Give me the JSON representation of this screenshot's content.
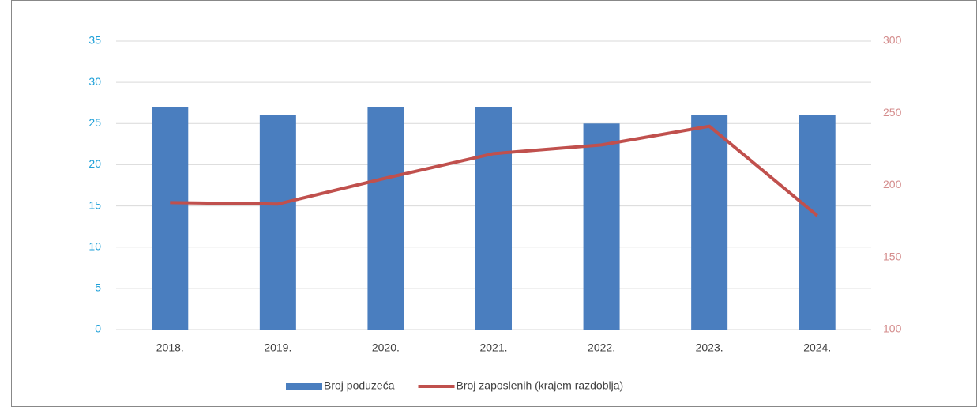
{
  "chart_data": {
    "type": "bar-line",
    "categories": [
      "2018.",
      "2019.",
      "2020.",
      "2021.",
      "2022.",
      "2023.",
      "2024."
    ],
    "series": [
      {
        "name": "Broj poduzeća",
        "color": "#4a7ebf",
        "type": "bar",
        "values": [
          27,
          26,
          27,
          27,
          25,
          26,
          26
        ]
      },
      {
        "name": "Broj zaposlenih (krajem razdoblja)",
        "color": "#c0504d",
        "type": "line",
        "axis": "y2",
        "values": [
          188,
          187,
          205,
          222,
          228,
          241,
          179
        ]
      }
    ],
    "ylim": [
      0,
      35
    ],
    "yticks": [
      0,
      5,
      10,
      15,
      20,
      25,
      30,
      35
    ],
    "y2lim": [
      100,
      300
    ],
    "y2ticks": [
      100,
      150,
      200,
      250,
      300
    ],
    "ytick_color": "#1fa0d8",
    "y2tick_color": "#d48c8c",
    "grid": true,
    "legend": "bottom"
  }
}
